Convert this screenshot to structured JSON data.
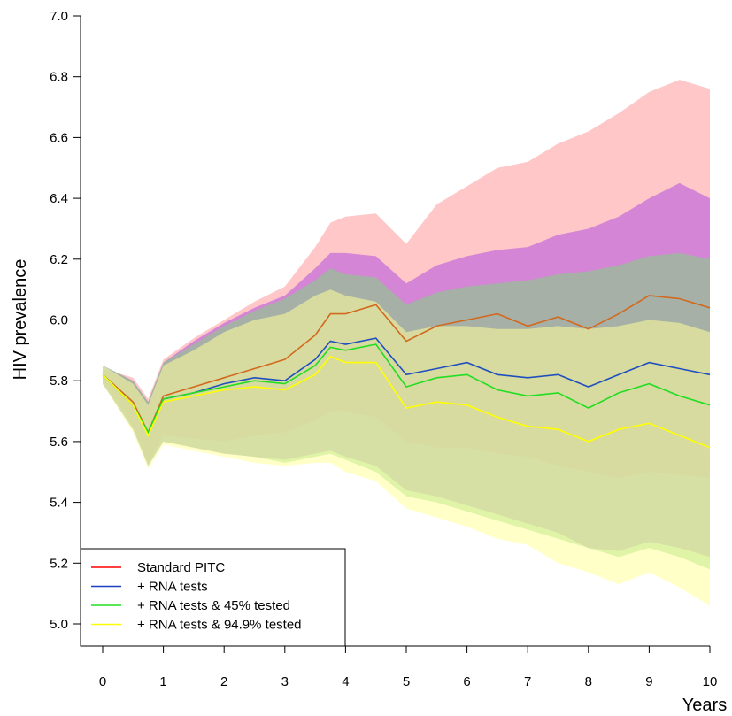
{
  "chart_data": {
    "type": "line",
    "title": "",
    "xlabel": "Years",
    "ylabel": "HIV prevalence",
    "xlim": [
      0,
      10
    ],
    "ylim": [
      5.0,
      7.0
    ],
    "x_ticks": [
      0,
      1,
      2,
      3,
      4,
      5,
      6,
      7,
      8,
      9,
      10
    ],
    "y_ticks": [
      "5.0",
      "5.2",
      "5.4",
      "5.6",
      "5.8",
      "6.0",
      "6.2",
      "6.4",
      "6.6",
      "6.8",
      "7.0"
    ],
    "grid": false,
    "legend_position": "bottom-left",
    "x": [
      0,
      0.5,
      0.75,
      1,
      1.5,
      2,
      2.5,
      3,
      3.5,
      3.75,
      4,
      4.5,
      5,
      5.5,
      6,
      6.5,
      7,
      7.5,
      8,
      8.5,
      9,
      9.5,
      10
    ],
    "series": [
      {
        "name": "Standard PITC",
        "color": "#d2691e",
        "legend_color": "#ff0000",
        "band_color": "#ff9999",
        "values": [
          5.82,
          5.73,
          5.63,
          5.75,
          5.78,
          5.81,
          5.84,
          5.87,
          5.95,
          6.02,
          6.02,
          6.05,
          5.93,
          5.98,
          6.0,
          6.02,
          5.98,
          6.01,
          5.97,
          6.02,
          6.08,
          6.07,
          6.04
        ],
        "lower": [
          5.8,
          5.65,
          5.53,
          5.62,
          5.61,
          5.6,
          5.62,
          5.63,
          5.67,
          5.7,
          5.7,
          5.68,
          5.6,
          5.58,
          5.58,
          5.56,
          5.55,
          5.52,
          5.5,
          5.48,
          5.5,
          5.49,
          5.48
        ],
        "upper": [
          5.84,
          5.81,
          5.74,
          5.87,
          5.94,
          6.0,
          6.06,
          6.11,
          6.24,
          6.32,
          6.34,
          6.35,
          6.25,
          6.38,
          6.44,
          6.5,
          6.52,
          6.58,
          6.62,
          6.68,
          6.75,
          6.79,
          6.76
        ]
      },
      {
        "name": "+ RNA tests",
        "color": "#1f4fbf",
        "legend_color": "#1f3fbf",
        "band_color": "#b04fe0",
        "values": [
          5.82,
          5.72,
          5.63,
          5.74,
          5.76,
          5.79,
          5.81,
          5.8,
          5.87,
          5.93,
          5.92,
          5.94,
          5.82,
          5.84,
          5.86,
          5.82,
          5.81,
          5.82,
          5.78,
          5.82,
          5.86,
          5.84,
          5.82
        ],
        "lower": [
          5.79,
          5.64,
          5.52,
          5.6,
          5.58,
          5.56,
          5.55,
          5.54,
          5.56,
          5.57,
          5.55,
          5.52,
          5.44,
          5.42,
          5.39,
          5.36,
          5.33,
          5.3,
          5.25,
          5.24,
          5.27,
          5.25,
          5.22
        ],
        "upper": [
          5.85,
          5.8,
          5.73,
          5.86,
          5.93,
          5.99,
          6.04,
          6.08,
          6.17,
          6.22,
          6.22,
          6.21,
          6.12,
          6.18,
          6.21,
          6.23,
          6.24,
          6.28,
          6.3,
          6.34,
          6.4,
          6.45,
          6.4
        ]
      },
      {
        "name": "+ RNA tests & 45% tested",
        "color": "#22dd22",
        "legend_color": "#22dd22",
        "band_color": "#7fd37f",
        "values": [
          5.82,
          5.72,
          5.63,
          5.74,
          5.76,
          5.78,
          5.8,
          5.79,
          5.85,
          5.91,
          5.9,
          5.92,
          5.78,
          5.81,
          5.82,
          5.77,
          5.75,
          5.76,
          5.71,
          5.76,
          5.79,
          5.75,
          5.72
        ],
        "lower": [
          5.79,
          5.64,
          5.52,
          5.6,
          5.58,
          5.56,
          5.55,
          5.53,
          5.55,
          5.56,
          5.54,
          5.5,
          5.42,
          5.4,
          5.37,
          5.34,
          5.31,
          5.28,
          5.25,
          5.22,
          5.25,
          5.22,
          5.18
        ],
        "upper": [
          5.85,
          5.8,
          5.73,
          5.86,
          5.92,
          5.98,
          6.03,
          6.07,
          6.13,
          6.17,
          6.15,
          6.14,
          6.05,
          6.09,
          6.11,
          6.12,
          6.13,
          6.15,
          6.16,
          6.18,
          6.21,
          6.22,
          6.2
        ]
      },
      {
        "name": "+ RNA tests & 94.9% tested",
        "color": "#ffff00",
        "legend_color": "#ffff00",
        "band_color": "#ffff99",
        "values": [
          5.82,
          5.72,
          5.62,
          5.73,
          5.75,
          5.77,
          5.78,
          5.77,
          5.82,
          5.88,
          5.86,
          5.86,
          5.71,
          5.73,
          5.72,
          5.68,
          5.65,
          5.64,
          5.6,
          5.64,
          5.66,
          5.62,
          5.58
        ],
        "lower": [
          5.79,
          5.63,
          5.51,
          5.59,
          5.57,
          5.55,
          5.53,
          5.52,
          5.53,
          5.53,
          5.5,
          5.47,
          5.38,
          5.35,
          5.32,
          5.28,
          5.26,
          5.2,
          5.17,
          5.13,
          5.17,
          5.12,
          5.06
        ],
        "upper": [
          5.85,
          5.79,
          5.72,
          5.85,
          5.9,
          5.96,
          6.0,
          6.02,
          6.08,
          6.1,
          6.08,
          6.06,
          5.96,
          5.98,
          5.98,
          5.97,
          5.97,
          5.98,
          5.97,
          5.98,
          6.0,
          5.99,
          5.96
        ]
      }
    ]
  }
}
